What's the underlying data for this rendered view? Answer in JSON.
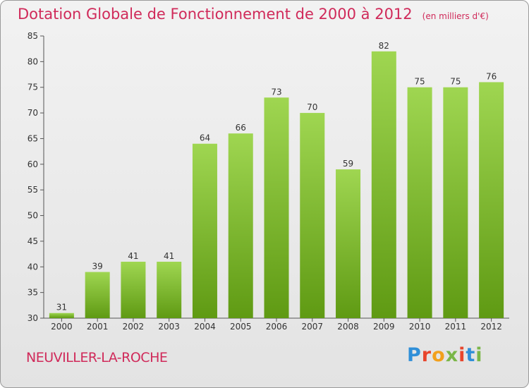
{
  "header": {
    "title": "Dotation Globale de Fonctionnement de 2000 à 2012",
    "unit": "(en milliers d'€)"
  },
  "footer": {
    "commune": "NEUVILLER-LA-ROCHE",
    "logo_letters": [
      "P",
      "r",
      "o",
      "x",
      "i",
      "t",
      "i"
    ],
    "logo_colors": [
      "#2f8fd8",
      "#e8452c",
      "#f2a01c",
      "#7ab648",
      "#e8452c",
      "#2f8fd8",
      "#7ab648"
    ]
  },
  "chart_data": {
    "type": "bar",
    "title": "Dotation Globale de Fonctionnement de 2000 à 2012",
    "subtitle": "(en milliers d'€)",
    "xlabel": "",
    "ylabel": "",
    "categories": [
      "2000",
      "2001",
      "2002",
      "2003",
      "2004",
      "2005",
      "2006",
      "2007",
      "2008",
      "2009",
      "2010",
      "2011",
      "2012"
    ],
    "values": [
      31,
      39,
      41,
      41,
      64,
      66,
      73,
      70,
      59,
      82,
      75,
      75,
      76
    ],
    "ylim": [
      30,
      85
    ],
    "yticks": [
      30,
      35,
      40,
      45,
      50,
      55,
      60,
      65,
      70,
      75,
      80,
      85
    ],
    "grid": false,
    "bar_color_top": "#9fd651",
    "bar_color_bottom": "#5f9a13"
  }
}
